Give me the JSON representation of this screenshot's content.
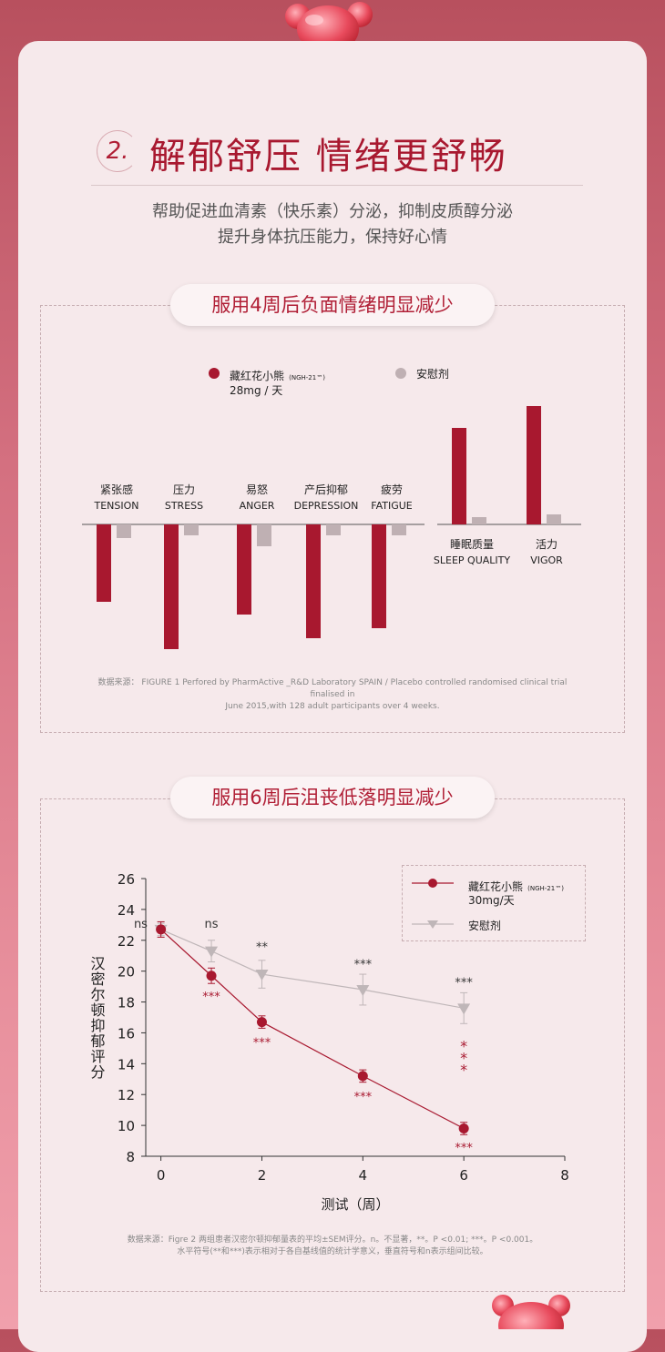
{
  "section": {
    "number": "2.",
    "title": "解郁舒压 情绪更舒畅",
    "subtitle_line1": "帮助促进血清素（快乐素）分泌，抑制皮质醇分泌",
    "subtitle_line2": "提升身体抗压能力，保持好心情"
  },
  "panel1": {
    "heading": "服用4周后负面情绪明显减少",
    "legend_treatment": "藏红花小熊",
    "legend_treatment_code": "(NGH-21™)",
    "legend_treatment_dose": "28mg / 天",
    "legend_placebo": "安慰剂",
    "source": "数据来源： FIGURE 1 Perfored by PharmActive _R&D Laboratory SPAIN / Placebo controlled randomised clinical trial finalised in",
    "source_line2": "June 2015,with 128 adult participants over 4 weeks.",
    "colors": {
      "treatment": "#a8182f",
      "placebo": "#bfb0b3"
    }
  },
  "panel2": {
    "heading": "服用6周后沮丧低落明显减少",
    "legend_treatment": "藏红花小熊",
    "legend_treatment_code": "(NGH-21™)",
    "legend_treatment_dose": "30mg/天",
    "legend_placebo": "安慰剂",
    "source_line1": "数据来源：Figre 2 两组患者汉密尔顿抑郁量表的平均±SEM评分。n。不显著，**。P <0.01; ***。P <0.001。",
    "source_line2": "水平符号(**和***)表示相对于各自基线值的统计学意义，垂直符号和n表示组间比较。"
  },
  "chart_data": [
    {
      "type": "bar",
      "subtype": "diverging",
      "note": "Relative change magnitudes estimated from bar lengths (no numeric axis printed)",
      "groups_negative": [
        {
          "zh": "紧张感",
          "en": "TENSION",
          "treatment": -85,
          "placebo": -15
        },
        {
          "zh": "压力",
          "en": "STRESS",
          "treatment": -137,
          "placebo": -12
        },
        {
          "zh": "易怒",
          "en": "ANGER",
          "treatment": -99,
          "placebo": -24
        },
        {
          "zh": "产后抑郁",
          "en": "DEPRESSION",
          "treatment": -125,
          "placebo": -12
        },
        {
          "zh": "疲劳",
          "en": "FATIGUE",
          "treatment": -114,
          "placebo": -12
        }
      ],
      "groups_positive": [
        {
          "zh": "睡眠质量",
          "en": "SLEEP QUALITY",
          "treatment": 106,
          "placebo": 8
        },
        {
          "zh": "活力",
          "en": "VIGOR",
          "treatment": 130,
          "placebo": 11
        }
      ],
      "series": [
        {
          "name": "藏红花小熊"
        },
        {
          "name": "安慰剂"
        }
      ]
    },
    {
      "type": "line",
      "xlabel": "测试（周）",
      "ylabel": "汉密尔顿抑郁评分",
      "xlim": [
        -0.3,
        8
      ],
      "ylim": [
        8,
        26
      ],
      "xticks": [
        0,
        2,
        4,
        6,
        8
      ],
      "yticks": [
        8,
        10,
        12,
        14,
        16,
        18,
        20,
        22,
        24,
        26
      ],
      "legend_placement": "top-right",
      "series": [
        {
          "name": "藏红花小熊",
          "color": "#a8182f",
          "marker": "circle",
          "x": [
            0,
            1,
            2,
            4,
            6
          ],
          "y": [
            22.7,
            19.7,
            16.7,
            13.2,
            9.8
          ],
          "err": [
            0.5,
            0.5,
            0.4,
            0.4,
            0.4
          ]
        },
        {
          "name": "安慰剂",
          "color": "#bfb6b8",
          "marker": "triangle-down",
          "x": [
            0,
            1,
            2,
            4,
            6
          ],
          "y": [
            22.7,
            21.3,
            19.8,
            18.8,
            17.6
          ],
          "err": [
            0.4,
            0.7,
            0.9,
            1.0,
            1.0
          ]
        }
      ],
      "annotations": [
        {
          "text": "ns",
          "x": -0.4,
          "y": 22.8,
          "color": "#333"
        },
        {
          "text": "ns",
          "x": 1.0,
          "y": 22.8,
          "color": "#333"
        },
        {
          "text": "**",
          "x": 2,
          "y": 21.3,
          "color": "#333"
        },
        {
          "text": "***",
          "x": 4,
          "y": 20.2,
          "color": "#333"
        },
        {
          "text": "***",
          "x": 6,
          "y": 19.0,
          "color": "#333"
        },
        {
          "text": "***",
          "x": 1,
          "y": 18.1,
          "color": "#a8182f"
        },
        {
          "text": "***",
          "x": 2,
          "y": 15.1,
          "color": "#a8182f"
        },
        {
          "text": "***",
          "x": 4,
          "y": 11.6,
          "color": "#a8182f"
        },
        {
          "text": "***",
          "x": 6,
          "y": 8.3,
          "color": "#a8182f"
        }
      ],
      "vertical_annotation": {
        "text": "***",
        "x": 6,
        "y": 14.0,
        "color": "#a8182f"
      }
    }
  ]
}
